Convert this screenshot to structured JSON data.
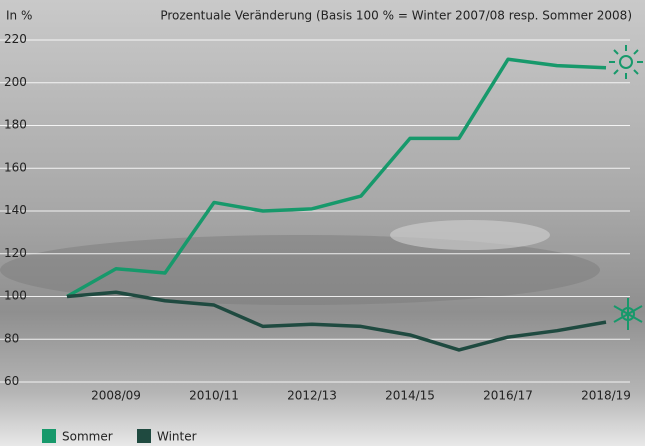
{
  "chart_data": {
    "type": "line",
    "title": "Prozentuale Veränderung (Basis 100 % = Winter 2007/08 resp. Sommer 2008)",
    "ylabel": "In %",
    "categories": [
      null,
      "2008/09",
      null,
      "2010/11",
      null,
      "2012/13",
      null,
      "2014/15",
      null,
      "2016/17",
      null,
      "2018/19"
    ],
    "series": [
      {
        "name": "Sommer",
        "color": "#17996b",
        "values": [
          100,
          113,
          111,
          144,
          140,
          141,
          147,
          174,
          174,
          211,
          208,
          207
        ]
      },
      {
        "name": "Winter",
        "color": "#1f4a40",
        "values": [
          100,
          102,
          98,
          96,
          86,
          87,
          86,
          82,
          75,
          81,
          84,
          88
        ]
      }
    ],
    "ylim": [
      60,
      220
    ],
    "yticks": [
      60,
      80,
      100,
      120,
      140,
      160,
      180,
      200,
      220
    ],
    "grid": true
  }
}
